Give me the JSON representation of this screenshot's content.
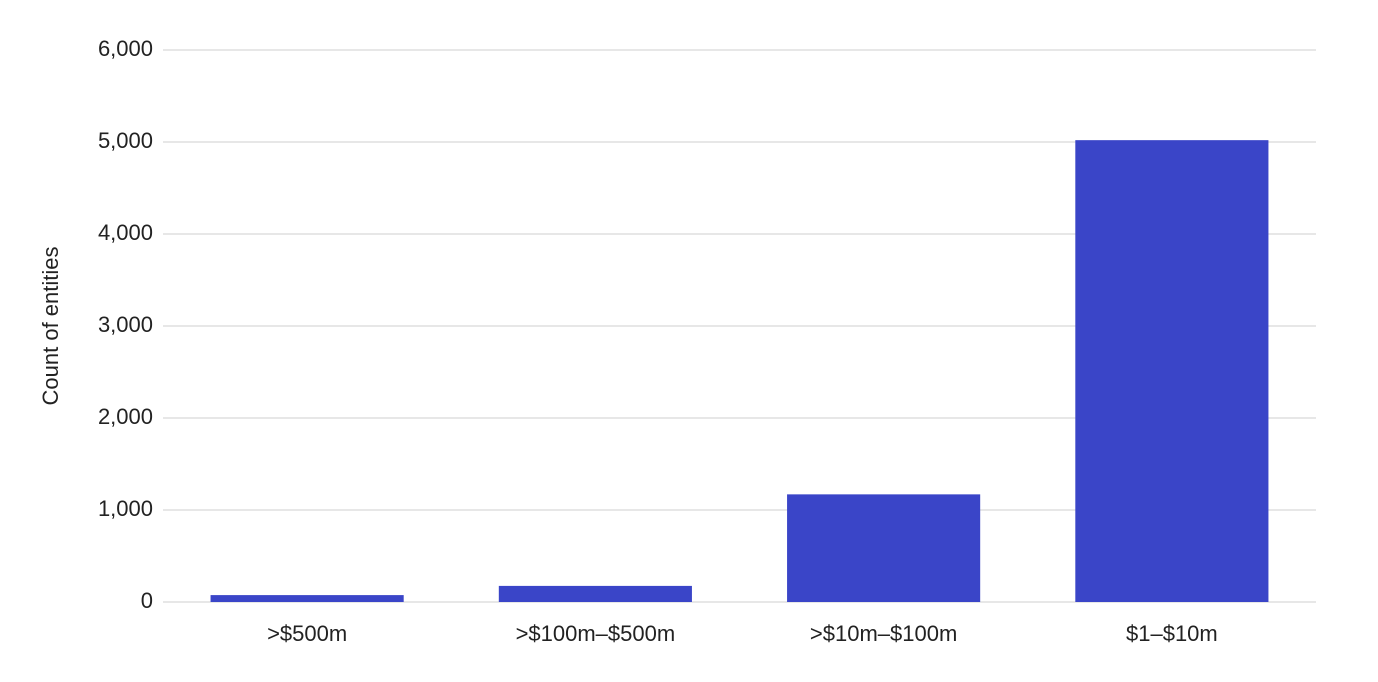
{
  "chart_data": {
    "type": "bar",
    "y_label": "Count of entities",
    "categories": [
      ">$500m",
      ">$100m–$500m",
      ">$10m–$100m",
      "$1–$10m"
    ],
    "values": [
      75,
      175,
      1170,
      5020
    ],
    "color": "#3a45c8",
    "ylim": [
      0,
      6000
    ],
    "yticks": [
      0,
      {
        "value": 1000,
        "label": "1,000"
      },
      {
        "value": 2000,
        "label": "2,000"
      },
      {
        "value": 3000,
        "label": "3,000"
      },
      {
        "value": 4000,
        "label": "4,000"
      },
      {
        "value": 5000,
        "label": "5,000"
      },
      {
        "value": 6000,
        "label": "6,000"
      }
    ],
    "grid": true
  }
}
